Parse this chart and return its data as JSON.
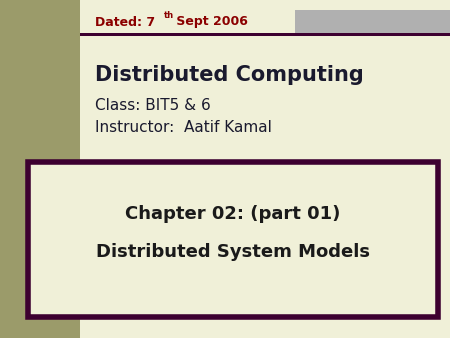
{
  "background_color": "#f0f0d8",
  "olive_bar_color": "#9b9b6a",
  "gray_bar_color": "#b0b0b0",
  "dark_border_color": "#3d0030",
  "dark_line_color": "#3d0030",
  "date_color": "#8b0000",
  "title_text": "Distributed Computing",
  "class_text": "Class: BIT5 & 6",
  "instructor_text": "Instructor:  Aatif Kamal",
  "main_text_color": "#1a1a2e",
  "chapter_line1": "Chapter 02: (part 01)",
  "chapter_line2": "Distributed System Models",
  "chapter_text_color": "#1a1a1a",
  "box_bg_color": "#f0f0d8",
  "box_border_color": "#3d0030",
  "fig_width": 4.5,
  "fig_height": 3.38,
  "dpi": 100
}
